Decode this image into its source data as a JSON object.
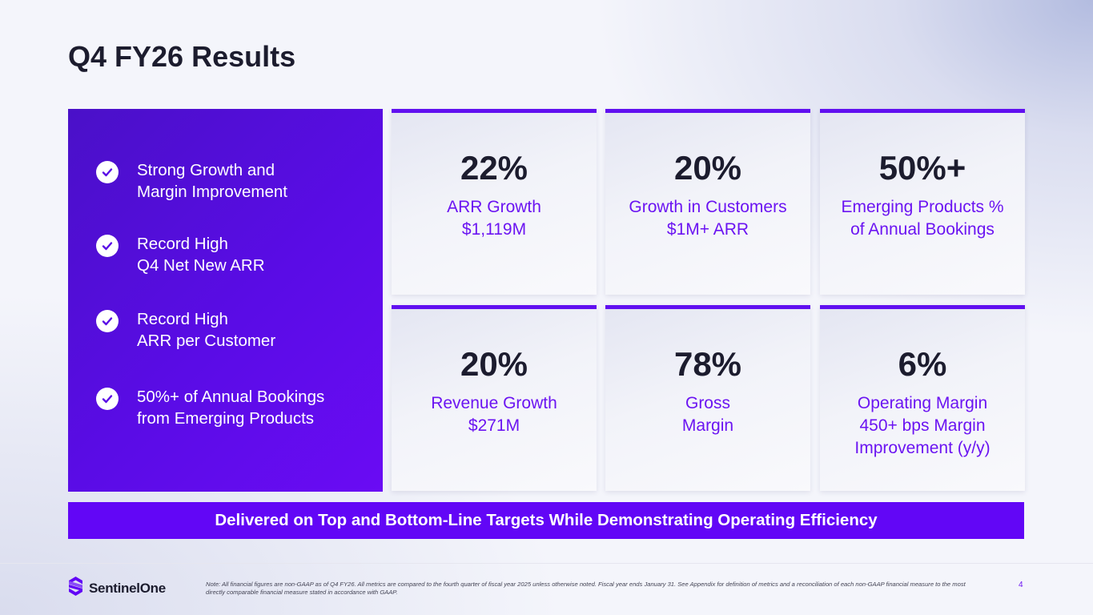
{
  "slide": {
    "title": "Q4 FY26 Results",
    "page_number": "4"
  },
  "highlights": [
    {
      "line1": "Strong Growth and",
      "line2": "Margin Improvement"
    },
    {
      "line1": "Record High",
      "line2": "Q4 Net New ARR"
    },
    {
      "line1": "Record High",
      "line2": "ARR per Customer"
    },
    {
      "line1": "50%+ of Annual Bookings",
      "line2": "from Emerging Products"
    }
  ],
  "metrics": [
    {
      "value": "22%",
      "label1": "ARR Growth",
      "label2": "$1,119M",
      "label3": ""
    },
    {
      "value": "20%",
      "label1": "Growth in Customers",
      "label2": "$1M+ ARR",
      "label3": ""
    },
    {
      "value": "50%+",
      "label1": "Emerging Products %",
      "label2": "of Annual Bookings",
      "label3": ""
    },
    {
      "value": "20%",
      "label1": "Revenue Growth",
      "label2": "$271M",
      "label3": ""
    },
    {
      "value": "78%",
      "label1": "Gross",
      "label2": "Margin",
      "label3": ""
    },
    {
      "value": "6%",
      "label1": "Operating Margin",
      "label2": "450+ bps Margin",
      "label3": "Improvement (y/y)"
    }
  ],
  "banner": {
    "text": "Delivered on Top and Bottom-Line Targets While Demonstrating Operating Efficiency"
  },
  "footer": {
    "brand": "SentinelOne",
    "note": "Note: All financial figures are non-GAAP as of Q4 FY26. All metrics are compared to the fourth quarter of fiscal year 2025 unless otherwise noted. Fiscal year ends January 31. See Appendix for definition of metrics and a reconciliation of each non-GAAP financial measure to the most directly comparable financial measure stated in accordance with GAAP."
  },
  "colors": {
    "accent": "#6206f6",
    "panel": "#5a0ce6",
    "text_dark": "#1c1c2e"
  },
  "icons": [
    "checkmark-icon",
    "sentinelone-logo-icon"
  ]
}
